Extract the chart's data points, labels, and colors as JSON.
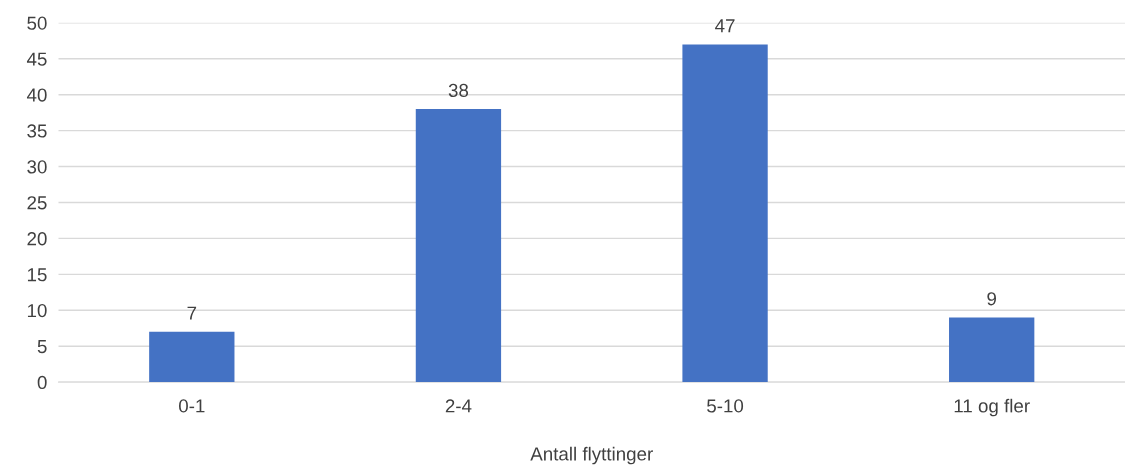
{
  "chart_data": {
    "type": "bar",
    "xlabel": "Antall flyttinger",
    "categories": [
      "0-1",
      "2-4",
      "5-10",
      "11 og fler"
    ],
    "values": [
      7,
      38,
      47,
      9
    ],
    "color": "#4472c4",
    "ylim": [
      0,
      50
    ],
    "yticks": [
      0,
      5,
      10,
      15,
      20,
      25,
      30,
      35,
      40,
      45,
      50
    ],
    "grid": "y",
    "data_labels": true
  }
}
